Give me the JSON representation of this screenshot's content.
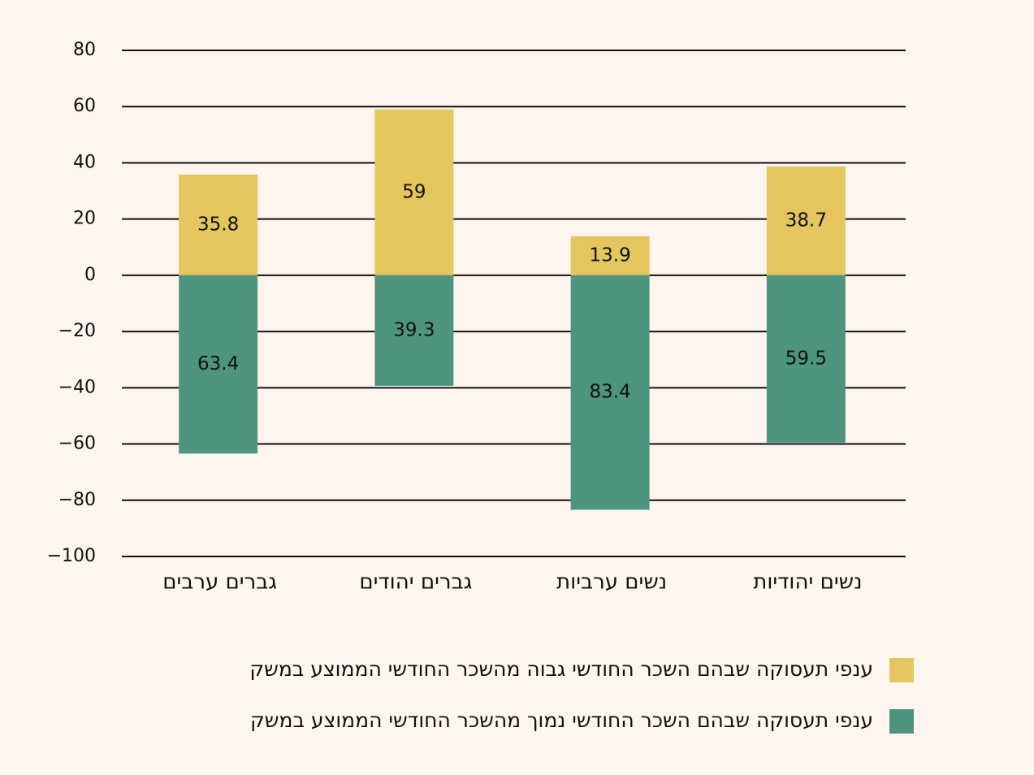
{
  "chart_data": {
    "type": "bar",
    "categories": [
      "גברים ערבים",
      "גברים יהודים",
      "נשים ערביות",
      "נשים יהודיות"
    ],
    "series": [
      {
        "name": "ענפי תעסוקה שבהם השכר החודשי גבוה מהשכר החודשי הממוצע במשק",
        "color": "#e5c65e",
        "values": [
          35.8,
          59,
          13.9,
          38.7
        ]
      },
      {
        "name": "ענפי תעסוקה שבהם השכר החודשי נמוך מהשכר החודשי הממוצע במשק",
        "color": "#4e9580",
        "values": [
          -63.4,
          -39.3,
          -83.4,
          -59.5
        ],
        "value_labels": [
          "63.4",
          "39.3",
          "83.4",
          "59.5"
        ]
      }
    ],
    "ylim": [
      -100,
      80
    ],
    "yticks": [
      {
        "value": -100,
        "label": "−100"
      },
      {
        "value": -80,
        "label": "−80"
      },
      {
        "value": -60,
        "label": "−60"
      },
      {
        "value": -40,
        "label": "−40"
      },
      {
        "value": -20,
        "label": "−20"
      },
      0,
      20,
      40,
      60,
      80
    ],
    "grid": true
  }
}
